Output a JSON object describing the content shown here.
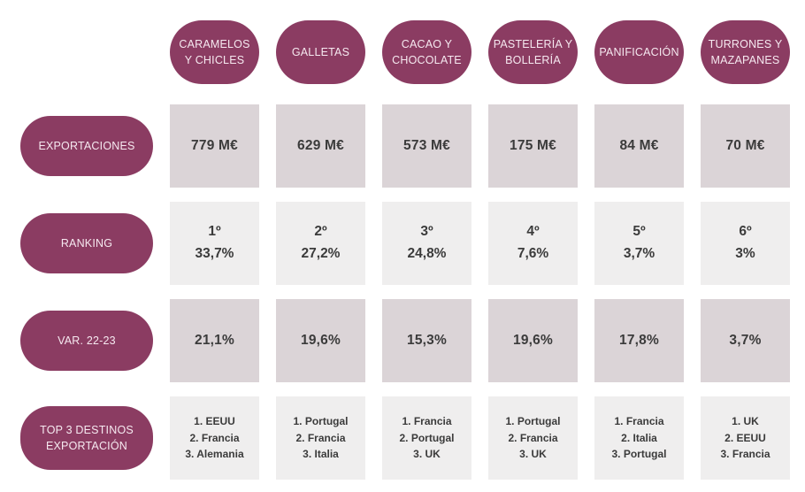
{
  "colors": {
    "pill_background": "#8b3c62",
    "pill_text": "#f6e9f0",
    "cell_shade_dark": "#dbd4d7",
    "cell_shade_light": "#efeeee",
    "cell_text": "#3b3b3b",
    "page_background": "#ffffff"
  },
  "chart_data": {
    "type": "table",
    "columns": [
      "CARAMELOS Y CHICLES",
      "GALLETAS",
      "CACAO Y CHOCOLATE",
      "PASTELERÍA Y BOLLERÍA",
      "PANIFICACIÓN",
      "TURRONES Y MAZAPANES"
    ],
    "rows": [
      {
        "label": "EXPORTACIONES",
        "values": [
          "779 M€",
          "629 M€",
          "573 M€",
          "175 M€",
          "84 M€",
          "70 M€"
        ]
      },
      {
        "label": "RANKING",
        "ranks": [
          "1º",
          "2º",
          "3º",
          "4º",
          "5º",
          "6º"
        ],
        "shares": [
          "33,7%",
          "27,2%",
          "24,8%",
          "7,6%",
          "3,7%",
          "3%"
        ]
      },
      {
        "label": "VAR. 22-23",
        "values": [
          "21,1%",
          "19,6%",
          "15,3%",
          "19,6%",
          "17,8%",
          "3,7%"
        ]
      },
      {
        "label": "TOP 3 DESTINOS EXPORTACIÓN",
        "destinations": [
          [
            "1. EEUU",
            "2. Francia",
            "3. Alemania"
          ],
          [
            "1. Portugal",
            "2. Francia",
            "3. Italia"
          ],
          [
            "1. Francia",
            "2. Portugal",
            "3. UK"
          ],
          [
            "1. Portugal",
            "2. Francia",
            "3. UK"
          ],
          [
            "1. Francia",
            "2. Italia",
            "3. Portugal"
          ],
          [
            "1. UK",
            "2. EEUU",
            "3. Francia"
          ]
        ]
      }
    ]
  }
}
